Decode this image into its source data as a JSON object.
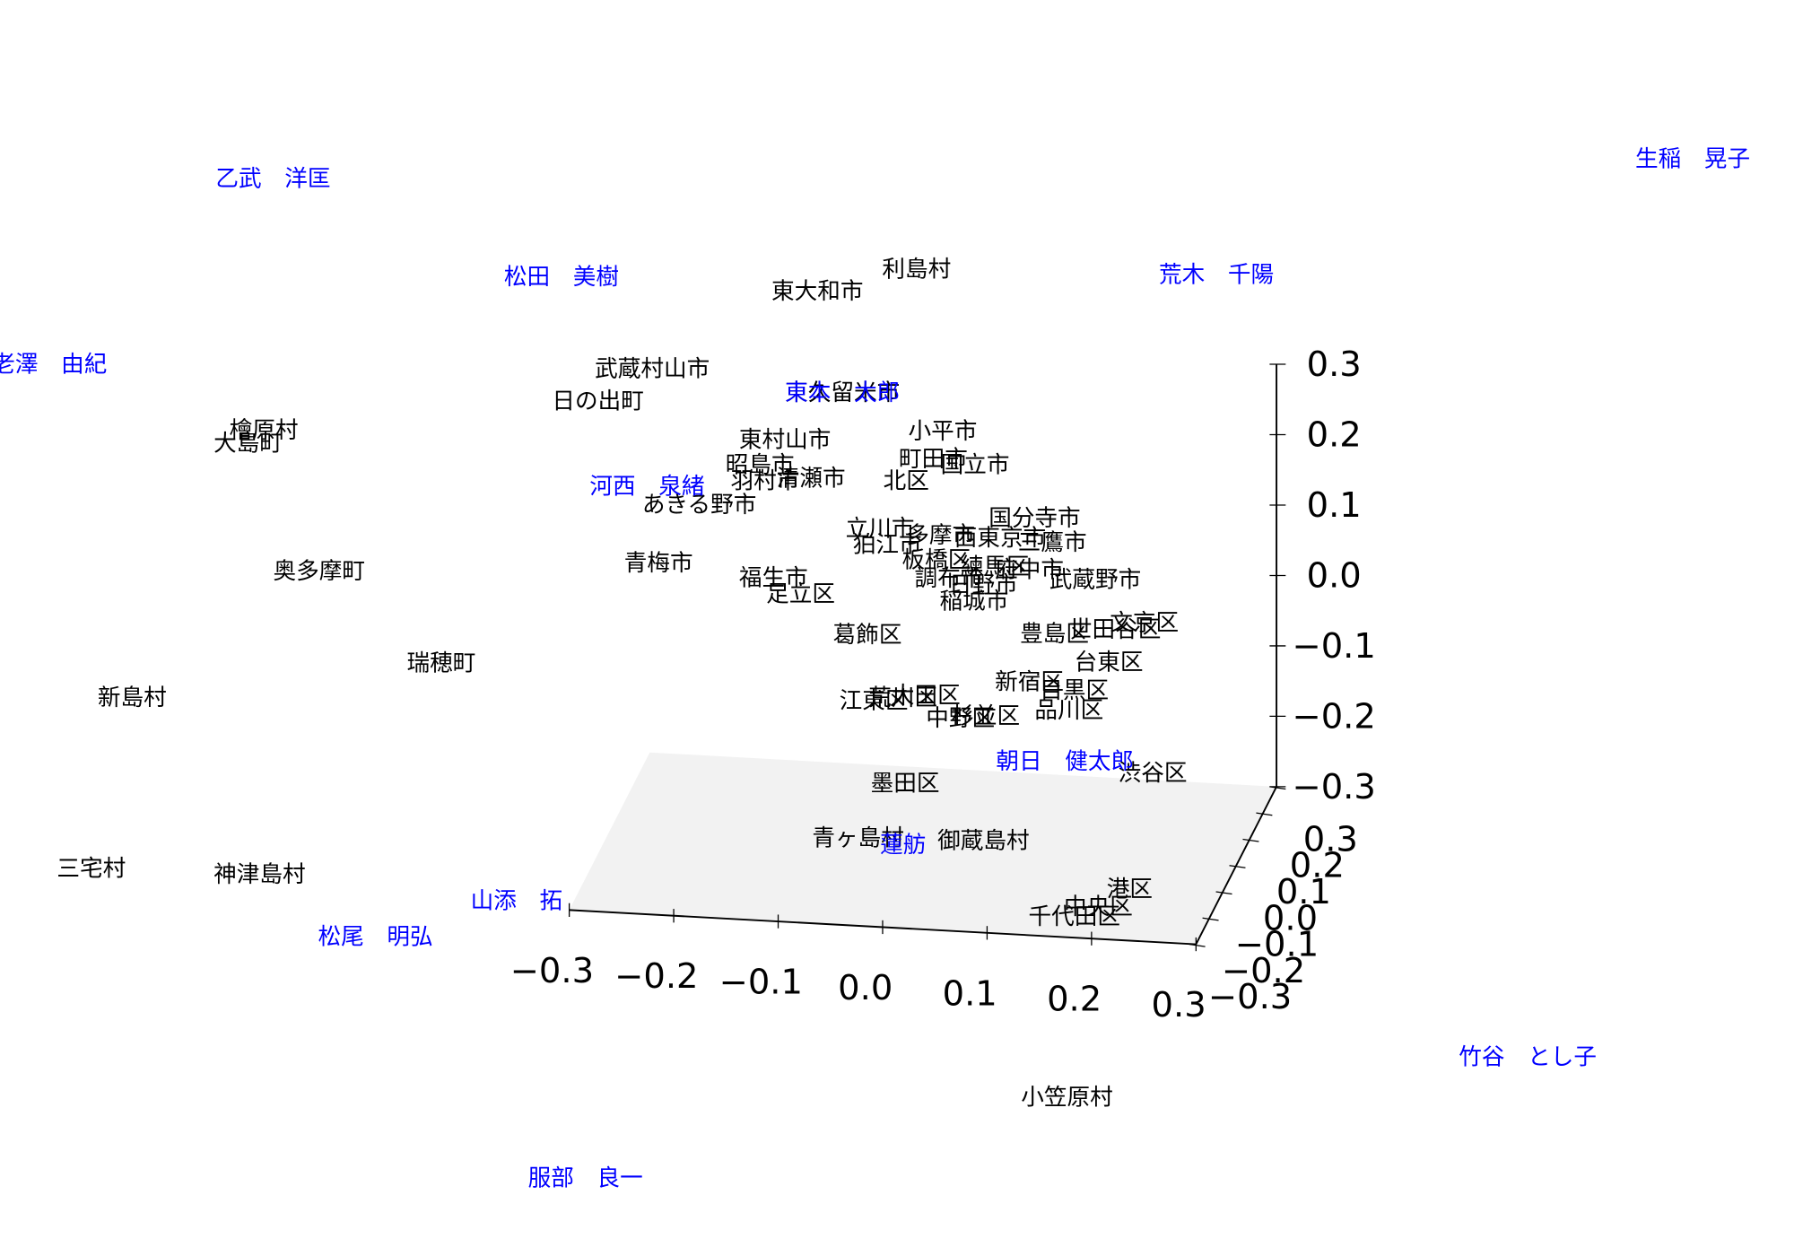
{
  "chart_data": {
    "type": "scatter3d",
    "xlim": [
      -0.3,
      0.3
    ],
    "ylim": [
      -0.3,
      0.3
    ],
    "zlim": [
      -0.3,
      0.3
    ],
    "xticks": [
      {
        "value": -0.3,
        "label": "−0.3"
      },
      {
        "value": -0.2,
        "label": "−0.2"
      },
      {
        "value": -0.1,
        "label": "−0.1"
      },
      {
        "value": 0,
        "label": "0.0"
      },
      0.1,
      0.2,
      0.3
    ],
    "yticks": [
      {
        "value": -0.3,
        "label": "−0.3"
      },
      {
        "value": -0.2,
        "label": "−0.2"
      },
      {
        "value": -0.1,
        "label": "−0.1"
      },
      {
        "value": 0,
        "label": "0.0"
      },
      0.1,
      0.2,
      0.3
    ],
    "zticks": [
      {
        "value": -0.3,
        "label": "−0.3"
      },
      {
        "value": -0.2,
        "label": "−0.2"
      },
      {
        "value": -0.1,
        "label": "−0.1"
      },
      {
        "value": 0,
        "label": "0.0"
      },
      0.1,
      0.2,
      0.3
    ],
    "pane_color": "#f2f2f2",
    "series": [
      {
        "color": "#000000",
        "labels": [
          "利島村",
          "東大和市",
          "武蔵村山市",
          "日の出町",
          "檜原村",
          "大島町",
          "東久留米市",
          "東村山市",
          "小平市",
          "昭島市",
          "町田市",
          "国立市",
          "羽村市",
          "清瀬市",
          "北区",
          "あきる野市",
          "国分寺市",
          "立川市",
          "狛江市",
          "多摩市",
          "西東京市",
          "三鷹市",
          "青梅市",
          "板橋区",
          "福生市",
          "練馬区",
          "府中市",
          "調布市",
          "日野市",
          "武蔵野市",
          "足立区",
          "稲城市",
          "奥多摩町",
          "葛飾区",
          "豊島区",
          "世田谷区",
          "文京区",
          "台東区",
          "瑞穂町",
          "新島村",
          "新宿区",
          "目黒区",
          "江東区",
          "荒川区",
          "大田区",
          "中野区",
          "杉並区",
          "品川区",
          "渋谷区",
          "墨田区",
          "青ヶ島村",
          "御蔵島村",
          "三宅村",
          "神津島村",
          "港区",
          "中央区",
          "千代田区",
          "小笠原村"
        ],
        "x": [
          -0.006,
          -0.101,
          -0.259,
          -0.311,
          -0.631,
          -0.646,
          -0.077,
          -0.132,
          0.019,
          -0.156,
          0.01,
          0.05,
          -0.151,
          -0.107,
          -0.016,
          -0.214,
          0.107,
          -0.041,
          -0.034,
          0.017,
          0.074,
          0.124,
          -0.253,
          0.013,
          -0.143,
          0.069,
          0.102,
          0.025,
          0.058,
          0.165,
          -0.117,
          0.049,
          -0.578,
          -0.053,
          0.126,
          0.184,
          0.212,
          0.178,
          -0.461,
          -0.757,
          0.102,
          0.145,
          -0.047,
          -0.019,
          0.003,
          0.036,
          0.06,
          0.14,
          0.22,
          -0.017,
          -0.062,
          0.058,
          -0.796,
          -0.635,
          0.198,
          0.168,
          0.145,
          0.138
        ],
        "y": [
          0,
          0,
          0,
          0,
          0,
          0,
          0,
          0,
          0,
          0,
          0,
          0,
          0,
          0,
          0,
          0,
          0,
          0,
          0,
          0,
          0,
          0,
          0,
          0,
          0,
          0,
          0,
          0,
          0,
          0,
          0,
          0,
          0,
          0,
          0,
          0,
          0,
          0,
          0,
          0,
          0,
          0,
          0,
          0,
          0,
          0,
          0,
          0,
          0,
          0,
          0,
          0,
          0,
          0,
          0,
          0,
          0,
          0
        ],
        "z": [
          0.52,
          0.481,
          0.358,
          0.308,
          0.241,
          0.221,
          0.339,
          0.268,
          0.292,
          0.23,
          0.252,
          0.247,
          0.208,
          0.215,
          0.219,
          0.169,
          0.176,
          0.149,
          0.127,
          0.144,
          0.145,
          0.143,
          0.083,
          0.109,
          0.071,
          0.104,
          0.102,
          0.084,
          0.077,
          0.093,
          0.05,
          0.053,
          0.045,
          -0.003,
          0.013,
          0.024,
          0.036,
          -0.023,
          -0.076,
          -0.149,
          -0.057,
          -0.066,
          -0.096,
          -0.089,
          -0.084,
          -0.114,
          -0.109,
          -0.094,
          -0.177,
          -0.211,
          -0.292,
          -0.286,
          -0.395,
          -0.39,
          -0.344,
          -0.371,
          -0.387,
          -0.644
        ]
      },
      {
        "color": "#0000ff",
        "labels": [
          "乙武　洋匡",
          "生稲　晃子",
          "松田　美樹",
          "荒木　千陽",
          "海老澤　由紀",
          "東本　太郎",
          "河西　泉緒",
          "朝日　健太郎",
          "蓮舫",
          "山添　拓",
          "松尾　明弘",
          "竹谷　とし子",
          "服部　良一"
        ],
        "x": [
          -0.622,
          0.737,
          -0.346,
          0.281,
          -0.847,
          -0.077,
          -0.264,
          0.136,
          -0.019,
          -0.389,
          -0.524,
          0.579,
          -0.323
        ],
        "y": [
          0,
          0,
          0,
          0,
          0,
          0,
          0,
          0,
          0,
          0,
          0,
          0,
          0
        ],
        "z": [
          0.599,
          0.737,
          0.482,
          0.536,
          0.317,
          0.339,
          0.191,
          -0.167,
          -0.298,
          -0.408,
          -0.47,
          -0.551,
          -0.796
        ]
      }
    ]
  }
}
